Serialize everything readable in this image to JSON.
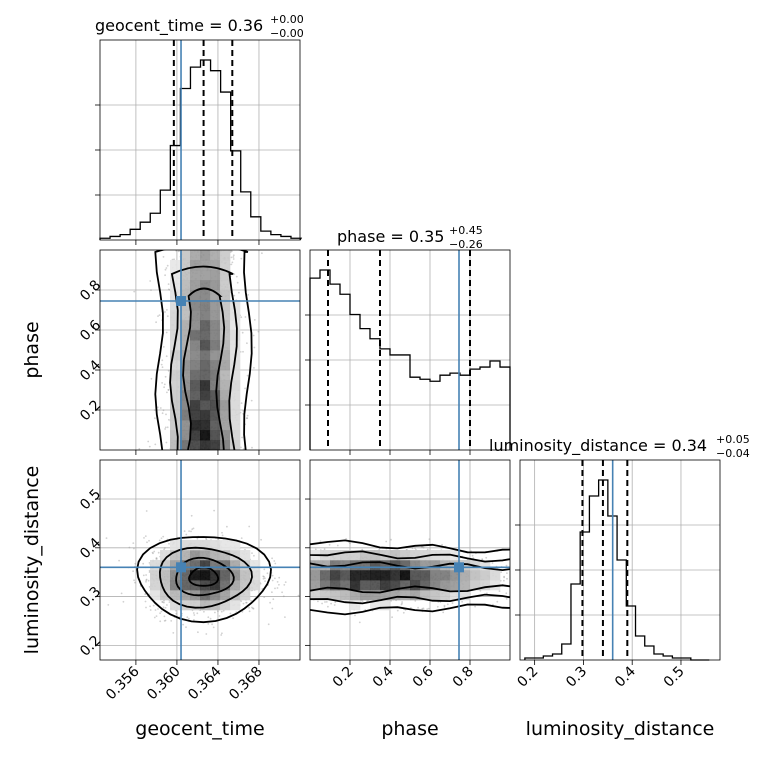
{
  "chart_data": {
    "type": "corner",
    "parameters": [
      "geocent_time",
      "phase",
      "luminosity_distance"
    ],
    "ranges": {
      "geocent_time": [
        0.3525,
        0.372
      ],
      "phase": [
        0.0,
        1.0
      ],
      "luminosity_distance": [
        0.17,
        0.58
      ]
    },
    "ticks": {
      "geocent_time": [
        "0.356",
        "0.360",
        "0.364",
        "0.368"
      ],
      "phase": [
        "0.2",
        "0.4",
        "0.6",
        "0.8"
      ],
      "luminosity_distance": [
        "0.2",
        "0.3",
        "0.4",
        "0.5"
      ]
    },
    "tick_values": {
      "geocent_time": [
        0.356,
        0.36,
        0.364,
        0.368
      ],
      "phase": [
        0.2,
        0.4,
        0.6,
        0.8
      ],
      "luminosity_distance": [
        0.2,
        0.3,
        0.4,
        0.5
      ]
    },
    "truths": {
      "geocent_time": 0.3604,
      "phase": 0.745,
      "luminosity_distance": 0.36
    },
    "titles": {
      "geocent_time": {
        "main": "geocent_time = 0.36",
        "upper": "+0.00",
        "lower": "−0.00"
      },
      "phase": {
        "main": "phase = 0.35",
        "upper": "+0.45",
        "lower": "−0.26"
      },
      "luminosity_distance": {
        "main": "luminosity_distance = 0.34",
        "upper": "+0.05",
        "lower": "−0.04"
      }
    },
    "quantiles": {
      "geocent_time": [
        0.3597,
        0.3626,
        0.3654
      ],
      "phase": [
        0.09,
        0.35,
        0.8
      ],
      "luminosity_distance": [
        0.298,
        0.34,
        0.39
      ]
    },
    "histograms": {
      "geocent_time": {
        "edges_start": 0.3525,
        "bin_width": 0.00098,
        "counts": [
          1,
          2,
          3,
          6,
          10,
          15,
          28,
          53,
          85,
          97,
          101,
          95,
          83,
          50,
          27,
          13,
          5,
          3,
          2,
          1
        ]
      },
      "phase": {
        "edges_start": 0.0,
        "bin_width": 0.05,
        "counts": [
          85,
          89,
          82,
          77,
          67,
          60,
          55,
          50,
          47,
          47,
          36,
          35,
          34,
          37,
          38,
          37,
          40,
          41,
          44,
          41
        ]
      },
      "luminosity_distance": {
        "edges_start": 0.18,
        "bin_width": 0.0189,
        "counts": [
          1,
          1,
          2,
          3,
          8,
          38,
          64,
          82,
          90,
          72,
          50,
          27,
          12,
          7,
          3,
          2,
          1,
          1,
          0,
          0
        ]
      }
    }
  }
}
